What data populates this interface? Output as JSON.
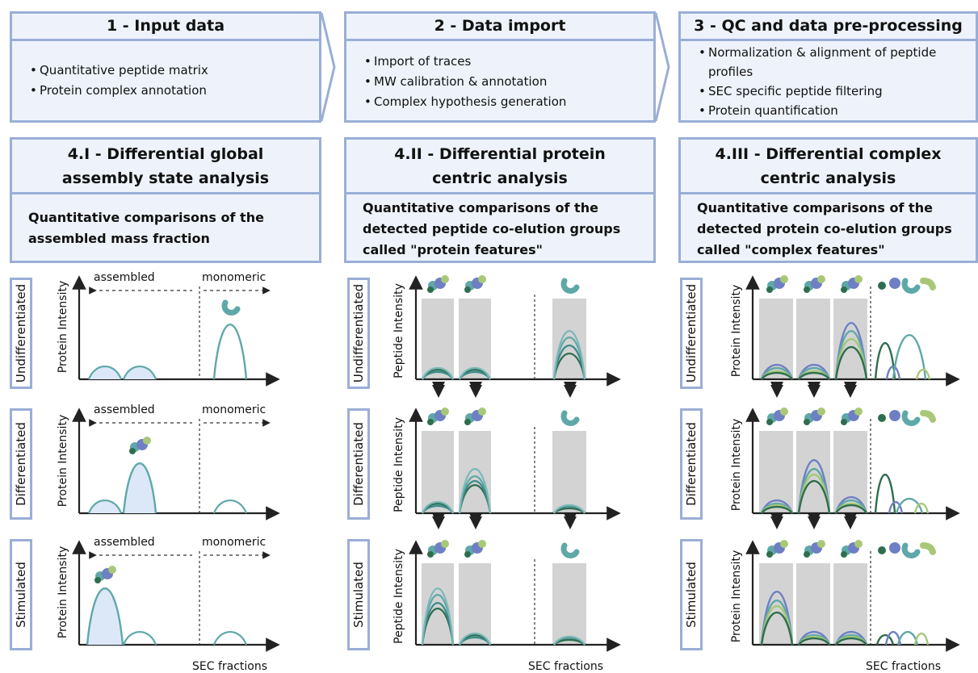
{
  "top_boxes": [
    {
      "title": "1 - Input data",
      "items": [
        "Quantitative peptide matrix",
        "Protein complex annotation"
      ]
    },
    {
      "title": "2 - Data import",
      "items": [
        "Import of traces",
        "MW calibration & annotation",
        "Complex hypothesis generation"
      ]
    },
    {
      "title": "3 - QC and data pre-processing",
      "items": [
        "Normalization & alignment of peptide profiles",
        "SEC specific peptide filtering",
        "Protein quantification"
      ]
    }
  ],
  "analysis_boxes": [
    {
      "title_line1": "4.I - Differential global",
      "title_line2": "assembly state analysis",
      "description": "Quantitative comparisons of the assembled mass fraction"
    },
    {
      "title_line1": "4.II - Differential protein",
      "title_line2": "centric analysis",
      "description": "Quantitative comparisons of the detected peptide co-elution groups called \"protein features\""
    },
    {
      "title_line1": "4.III - Differential complex",
      "title_line2": "centric analysis",
      "description": "Quantitative comparisons of the detected protein co-elution groups called \"complex features\""
    }
  ],
  "conditions": [
    "Undifferentiated",
    "Differentiated",
    "Stimulated"
  ],
  "axis_labels": {
    "global_y": "Protein Intensity",
    "protein_y": "Peptide Intensity",
    "complex_y": "Protein Intensity",
    "x": "SEC fractions"
  },
  "region_labels": {
    "assembled": "assembled",
    "monomeric": "monomeric"
  },
  "colors": {
    "box_border": "#9aaed6",
    "box_fill": "#eef3fb",
    "teal": "#5fa8a8",
    "dark_green": "#2e6e4e",
    "blue_purple": "#6f7fc4",
    "light_green": "#a8c878",
    "peak_fill": "#dce8f8",
    "grey_band": "#d3d3d3"
  },
  "icons": [
    "protein-complex-icon",
    "monomer-protein-icon",
    "double-arrow-icon",
    "flow-arrow-icon"
  ]
}
